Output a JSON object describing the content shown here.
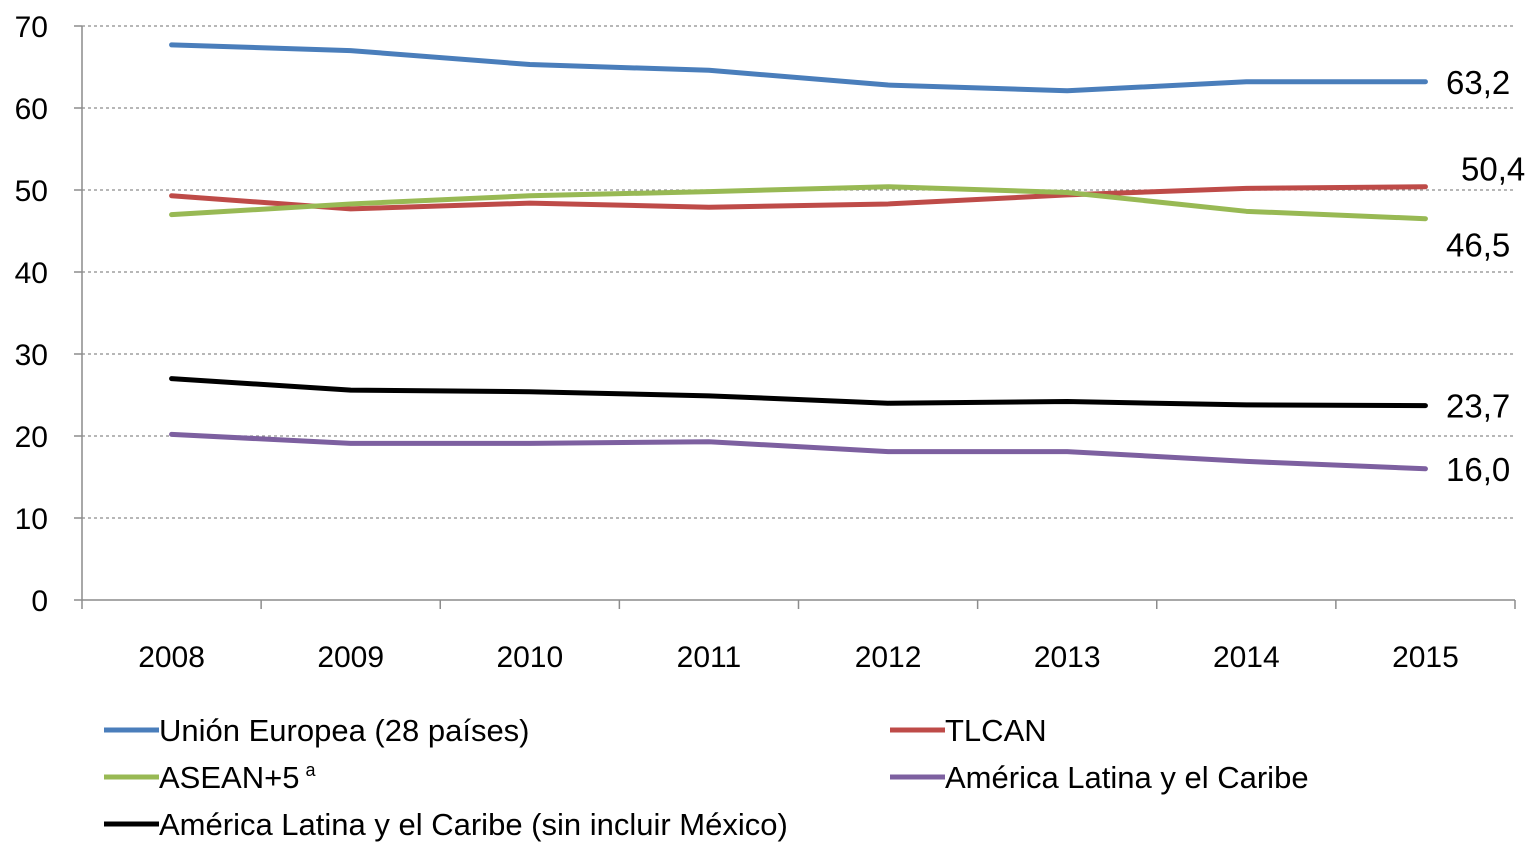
{
  "chart_data": {
    "type": "line",
    "title": "",
    "xlabel": "",
    "ylabel": "",
    "ylim": [
      0,
      70
    ],
    "y_ticks": [
      "0",
      "10",
      "20",
      "30",
      "40",
      "50",
      "60",
      "70"
    ],
    "categories": [
      "2008",
      "2009",
      "2010",
      "2011",
      "2012",
      "2013",
      "2014",
      "2015"
    ],
    "grid": "horizontal-dashed",
    "legend_position": "bottom",
    "series": [
      {
        "name": "Unión Europea (28 países)",
        "color": "#4a7ebb",
        "values": [
          67.7,
          67.0,
          65.3,
          64.6,
          62.8,
          62.1,
          63.2,
          63.2
        ],
        "end_label": "63,2"
      },
      {
        "name": "TLCAN",
        "color": "#be4b48",
        "values": [
          49.3,
          47.7,
          48.4,
          47.9,
          48.3,
          49.4,
          50.2,
          50.4
        ],
        "end_label": "50,4"
      },
      {
        "name": "ASEAN+5",
        "name_superscript": "a",
        "color": "#98b954",
        "values": [
          47.0,
          48.3,
          49.3,
          49.8,
          50.4,
          49.7,
          47.4,
          46.5
        ],
        "end_label": "46,5"
      },
      {
        "name": "América Latina y el Caribe",
        "color": "#7d60a0",
        "values": [
          20.2,
          19.1,
          19.1,
          19.3,
          18.1,
          18.1,
          16.9,
          16.0
        ],
        "end_label": "16,0"
      },
      {
        "name": "América Latina y el Caribe (sin incluir México)",
        "color": "#000000",
        "values": [
          27.0,
          25.6,
          25.4,
          24.9,
          24.0,
          24.2,
          23.8,
          23.7
        ],
        "end_label": "23,7"
      }
    ]
  }
}
